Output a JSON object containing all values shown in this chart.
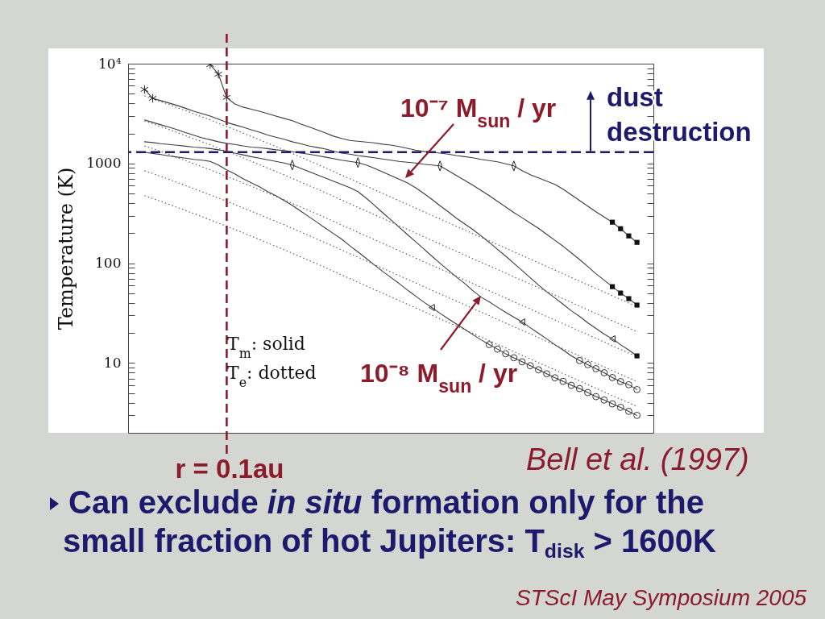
{
  "chart_data": {
    "type": "line",
    "ylabel": "Temperature (K)",
    "categories": [
      null,
      null,
      null,
      null,
      null,
      null,
      null,
      null,
      null,
      null,
      null,
      null,
      null,
      null,
      null,
      null,
      null,
      null,
      null,
      null,
      null,
      null,
      null,
      null,
      null,
      null,
      null,
      null,
      null,
      null,
      null,
      null,
      null,
      null,
      null,
      null,
      null,
      null,
      null,
      null,
      null,
      null,
      null,
      null,
      null,
      null,
      null,
      null,
      null,
      null,
      null,
      null,
      null,
      null,
      null,
      null,
      null,
      null,
      null,
      null,
      null
    ],
    "series": [
      {
        "line_style": "solid",
        "color": "#3c3c3c",
        "values": [
          null,
          null,
          null,
          null,
          null,
          null,
          null,
          null,
          9800,
          7860,
          4590,
          3950,
          3670,
          3500,
          3340,
          3160,
          2990,
          2830,
          2680,
          2490,
          2330,
          2180,
          2030,
          1880,
          1780,
          1700,
          1670,
          1640,
          1610,
          1560,
          1530,
          1480,
          1420,
          1360,
          1320,
          1300,
          1270,
          1240,
          1200,
          1170,
          1140,
          1100,
          1070,
          1040,
          991,
          946,
          846,
          771,
          716,
          665,
          617,
          552,
          485,
          426,
          374,
          328,
          291,
          258,
          222,
          188,
          162
        ]
      },
      {
        "line_style": "solid",
        "color": "#3c3c3c",
        "values": [
          5520,
          4500,
          4260,
          4030,
          3810,
          3570,
          3340,
          3160,
          2990,
          2780,
          2580,
          2440,
          2310,
          2180,
          2060,
          1930,
          1830,
          1750,
          1650,
          1580,
          1500,
          1450,
          1400,
          1330,
          1270,
          1240,
          1200,
          1170,
          1140,
          1110,
          1080,
          1050,
          1030,
          1010,
          982,
          964,
          946,
          846,
          757,
          677,
          606,
          537,
          476,
          418,
          367,
          322,
          286,
          253,
          224,
          195,
          170,
          148,
          127,
          109,
          92.8,
          78.6,
          67.7,
          58.3,
          50.3,
          44.2,
          38.1
        ]
      },
      {
        "line_style": "solid",
        "color": "#3c3c3c",
        "values": [
          2730,
          2580,
          2440,
          2310,
          2180,
          2040,
          1920,
          1810,
          1730,
          1650,
          1590,
          1550,
          1500,
          1460,
          1440,
          1410,
          1370,
          1350,
          1310,
          1270,
          1240,
          1200,
          1160,
          1120,
          1080,
          1050,
          1020,
          964,
          895,
          823,
          757,
          696,
          641,
          573,
          503,
          438,
          377,
          328,
          283,
          248,
          218,
          188,
          162,
          138,
          118,
          100,
          84.6,
          71.6,
          60.6,
          51.7,
          45.0,
          38.8,
          33.4,
          29.4,
          25.3,
          22.2,
          19.5,
          17.5,
          15.3,
          13.5,
          11.8
        ]
      },
      {
        "line_style": "solid",
        "color": "#3c3c3c",
        "values": [
          1650,
          1620,
          1580,
          1550,
          1520,
          1490,
          1460,
          1440,
          1410,
          1370,
          1330,
          1270,
          1220,
          1170,
          1130,
          1090,
          1050,
          1010,
          964,
          895,
          831,
          771,
          716,
          665,
          617,
          573,
          522,
          450,
          381,
          322,
          273,
          231,
          195,
          165,
          140,
          118,
          100,
          85.4,
          72.9,
          62.9,
          53.2,
          45.8,
          41.0,
          36.3,
          32.2,
          28.8,
          25.8,
          22.6,
          19.9,
          17.5,
          15.3,
          13.5,
          11.8,
          10.6,
          9.64,
          8.78,
          8,
          7.16,
          6.52,
          6.06,
          5.42
        ]
      },
      {
        "line_style": "solid",
        "color": "#3c3c3c",
        "values": [
          1300,
          1260,
          1230,
          1190,
          1160,
          1130,
          1100,
          1080,
          1050,
          964,
          862,
          786,
          703,
          641,
          584,
          522,
          476,
          426,
          381,
          334,
          294,
          258,
          226,
          199,
          175,
          150,
          130,
          112,
          96.4,
          83.1,
          72.3,
          62.9,
          54.2,
          47.1,
          41.0,
          36.0,
          31.6,
          27.8,
          24.6,
          21.8,
          19.3,
          17.1,
          15.3,
          13.8,
          12.4,
          11.3,
          10.3,
          9.41,
          8.57,
          7.81,
          7.12,
          6.56,
          5.98,
          5.55,
          5.06,
          4.61,
          4.26,
          3.9,
          3.6,
          3.28,
          2.99
        ]
      },
      {
        "line_style": "dotted",
        "color": "#555555",
        "values": [
          4750,
          4450,
          4160,
          3890,
          3620,
          3380,
          3150,
          2930,
          2730,
          2530,
          2350,
          2180,
          2020,
          1870,
          1730,
          1600,
          1480,
          1370,
          1260,
          1160,
          1070,
          987,
          908,
          834,
          765,
          704,
          646,
          595,
          546,
          502,
          461,
          424,
          390,
          358,
          329,
          302,
          278,
          255,
          235,
          216,
          198,
          182,
          168,
          154,
          142,
          130,
          120,
          110,
          101,
          92.8,
          85.4,
          78.4,
          72.1,
          66.2,
          60.9,
          55.9,
          51.4,
          47.2,
          43.4,
          40.0,
          36.7
        ]
      },
      {
        "line_style": "dotted",
        "color": "#555555",
        "values": [
          2670,
          2500,
          2340,
          2190,
          2040,
          1900,
          1770,
          1650,
          1540,
          1420,
          1320,
          1230,
          1140,
          1050,
          973,
          900,
          832,
          770,
          709,
          652,
          602,
          555,
          511,
          469,
          430,
          396,
          363,
          335,
          307,
          282,
          259,
          238,
          219,
          201,
          185,
          170,
          156,
          143,
          132,
          121,
          111,
          102,
          94.5,
          86.6,
          79.8,
          73.1,
          67.5,
          61.9,
          56.8,
          52.2,
          48.0,
          44.1,
          40.5,
          37.2,
          34.2,
          31.4,
          28.9,
          26.5,
          24.4,
          22.5,
          20.6
        ]
      },
      {
        "line_style": "dotted",
        "color": "#555555",
        "values": [
          1500,
          1410,
          1320,
          1230,
          1140,
          1070,
          996,
          926,
          863,
          800,
          743,
          689,
          639,
          591,
          547,
          506,
          468,
          433,
          398,
          367,
          338,
          312,
          287,
          264,
          242,
          223,
          204,
          188,
          173,
          159,
          146,
          134,
          123,
          113,
          104,
          95.5,
          87.9,
          80.6,
          74.3,
          68.3,
          62.6,
          57.5,
          53.1,
          48.7,
          44.9,
          41.1,
          37.9,
          34.8,
          31.9,
          29.3,
          27.0,
          24.8,
          22.8,
          20.9,
          19.3,
          17.7,
          16.3,
          14.9,
          13.7,
          12.6,
          11.6
        ]
      },
      {
        "line_style": "dotted",
        "color": "#555555",
        "values": [
          845,
          791,
          740,
          692,
          644,
          601,
          560,
          521,
          485,
          450,
          418,
          388,
          359,
          332,
          308,
          284,
          263,
          244,
          224,
          206,
          190,
          175,
          161,
          148,
          136,
          125,
          115,
          106,
          97.1,
          89.3,
          82.0,
          75.4,
          69.3,
          63.7,
          58.5,
          53.7,
          49.4,
          45.3,
          41.8,
          38.4,
          35.2,
          32.4,
          29.9,
          27.4,
          25.2,
          23.1,
          21.3,
          19.6,
          18.0,
          16.5,
          15.2,
          13.9,
          12.8,
          11.8,
          10.8,
          9.94,
          9.14,
          8.39,
          7.72,
          7.11,
          6.53
        ]
      },
      {
        "line_style": "dotted",
        "color": "#555555",
        "values": [
          475,
          445,
          416,
          389,
          362,
          338,
          315,
          293,
          273,
          253,
          235,
          218,
          202,
          187,
          173,
          160,
          148,
          137,
          126,
          116,
          107,
          98.7,
          90.8,
          83.4,
          76.5,
          70.4,
          64.6,
          59.5,
          54.6,
          50.2,
          46.1,
          42.4,
          39.0,
          35.8,
          32.9,
          30.2,
          27.8,
          25.5,
          23.5,
          21.6,
          19.8,
          18.2,
          16.8,
          15.4,
          14.2,
          13.0,
          12.0,
          11.0,
          10.1,
          9.28,
          8.54,
          7.84,
          7.21,
          6.62,
          6.09,
          5.59,
          5.14,
          4.72,
          4.34,
          4.0,
          3.67
        ]
      },
      {
        "type": "scatter",
        "marker": "cross",
        "color": "#222222",
        "values": [
          5520,
          4500,
          null,
          null,
          null,
          null,
          null,
          null,
          9800,
          7860,
          4590,
          null,
          null,
          null,
          null,
          null,
          null,
          null,
          null,
          null,
          null,
          null,
          null,
          null,
          null,
          null,
          null,
          null,
          null,
          null,
          null,
          null,
          null,
          null,
          null,
          null,
          null,
          null,
          null,
          null,
          null,
          null,
          null,
          null,
          null,
          null,
          null,
          null,
          null,
          null,
          null,
          null,
          null,
          null,
          null,
          null,
          null,
          null,
          null,
          null,
          null
        ]
      },
      {
        "type": "scatter",
        "marker": "diamond",
        "color": "#222222",
        "values": [
          null,
          null,
          null,
          null,
          null,
          null,
          null,
          null,
          null,
          null,
          null,
          null,
          null,
          null,
          null,
          null,
          null,
          null,
          964,
          null,
          null,
          null,
          null,
          null,
          null,
          null,
          1020,
          null,
          null,
          null,
          null,
          null,
          null,
          null,
          null,
          null,
          946,
          null,
          null,
          null,
          null,
          null,
          null,
          null,
          null,
          946,
          null,
          null,
          null,
          null,
          null,
          null,
          null,
          null,
          null,
          null,
          null,
          null,
          null,
          null,
          null
        ]
      },
      {
        "type": "scatter",
        "marker": "triangle",
        "color": "#222222",
        "values": [
          null,
          null,
          null,
          null,
          null,
          null,
          null,
          null,
          null,
          null,
          null,
          null,
          null,
          null,
          null,
          null,
          null,
          null,
          null,
          null,
          null,
          null,
          null,
          null,
          null,
          null,
          null,
          null,
          null,
          null,
          null,
          null,
          null,
          null,
          null,
          36.0,
          null,
          null,
          null,
          null,
          null,
          null,
          null,
          null,
          null,
          null,
          25.8,
          null,
          null,
          null,
          null,
          null,
          null,
          null,
          null,
          null,
          null,
          17.5,
          null,
          null,
          null
        ]
      },
      {
        "type": "scatter",
        "marker": "square",
        "color": "#111111",
        "values": [
          null,
          null,
          null,
          null,
          null,
          null,
          null,
          null,
          null,
          null,
          null,
          null,
          null,
          null,
          null,
          null,
          null,
          null,
          null,
          null,
          null,
          null,
          null,
          null,
          null,
          null,
          null,
          null,
          null,
          null,
          null,
          null,
          null,
          null,
          null,
          null,
          null,
          null,
          null,
          null,
          null,
          null,
          null,
          null,
          null,
          null,
          null,
          null,
          null,
          null,
          null,
          null,
          null,
          null,
          null,
          null,
          null,
          258,
          222,
          188,
          162
        ]
      },
      {
        "type": "scatter",
        "marker": "square",
        "color": "#111111",
        "values": [
          null,
          null,
          null,
          null,
          null,
          null,
          null,
          null,
          null,
          null,
          null,
          null,
          null,
          null,
          null,
          null,
          null,
          null,
          null,
          null,
          null,
          null,
          null,
          null,
          null,
          null,
          null,
          null,
          null,
          null,
          null,
          null,
          null,
          null,
          null,
          null,
          null,
          null,
          null,
          null,
          null,
          null,
          null,
          null,
          null,
          null,
          null,
          null,
          null,
          null,
          null,
          null,
          null,
          null,
          null,
          null,
          null,
          58.3,
          50.3,
          44.2,
          38.1
        ]
      },
      {
        "type": "scatter",
        "marker": "square",
        "color": "#111111",
        "values": [
          null,
          null,
          null,
          null,
          null,
          null,
          null,
          null,
          null,
          null,
          null,
          null,
          null,
          null,
          null,
          null,
          null,
          null,
          null,
          null,
          null,
          null,
          null,
          null,
          null,
          null,
          null,
          null,
          null,
          null,
          null,
          null,
          null,
          null,
          null,
          null,
          null,
          null,
          null,
          null,
          null,
          null,
          null,
          null,
          null,
          null,
          null,
          null,
          null,
          null,
          null,
          null,
          null,
          null,
          null,
          null,
          null,
          null,
          null,
          null,
          11.8
        ]
      },
      {
        "type": "scatter",
        "marker": "circle",
        "color": "#333333",
        "values": [
          null,
          null,
          null,
          null,
          null,
          null,
          null,
          null,
          null,
          null,
          null,
          null,
          null,
          null,
          null,
          null,
          null,
          null,
          null,
          null,
          null,
          null,
          null,
          null,
          null,
          null,
          null,
          null,
          null,
          null,
          null,
          null,
          null,
          null,
          null,
          null,
          null,
          null,
          null,
          null,
          null,
          null,
          null,
          null,
          null,
          null,
          null,
          null,
          null,
          null,
          null,
          null,
          null,
          10.6,
          9.64,
          8.78,
          8,
          7.16,
          6.52,
          6.06,
          5.42
        ]
      },
      {
        "type": "scatter",
        "marker": "circle",
        "color": "#333333",
        "values": [
          null,
          null,
          null,
          null,
          null,
          null,
          null,
          null,
          null,
          null,
          null,
          null,
          null,
          null,
          null,
          null,
          null,
          null,
          null,
          null,
          null,
          null,
          null,
          null,
          null,
          null,
          null,
          null,
          null,
          null,
          null,
          null,
          null,
          null,
          null,
          null,
          null,
          null,
          null,
          null,
          null,
          null,
          15.3,
          13.8,
          12.4,
          11.3,
          10.3,
          9.41,
          8.57,
          7.81,
          7.12,
          6.56,
          5.98,
          5.55,
          5.06,
          4.61,
          4.26,
          3.9,
          3.6,
          3.28,
          2.99
        ]
      }
    ],
    "ylim": [
      2,
      10000
    ],
    "yticks": [
      {
        "value": 3,
        "label": null
      },
      {
        "value": 4,
        "label": null
      },
      {
        "value": 5,
        "label": null
      },
      {
        "value": 6,
        "label": null
      },
      {
        "value": 7,
        "label": null
      },
      {
        "value": 8,
        "label": null
      },
      {
        "value": 9,
        "label": null
      },
      10,
      {
        "value": 20,
        "label": null
      },
      {
        "value": 30,
        "label": null
      },
      {
        "value": 40,
        "label": null
      },
      {
        "value": 50,
        "label": null
      },
      {
        "value": 60,
        "label": null
      },
      {
        "value": 70,
        "label": null
      },
      {
        "value": 80,
        "label": null
      },
      {
        "value": 90,
        "label": null
      },
      100,
      {
        "value": 200,
        "label": null
      },
      {
        "value": 300,
        "label": null
      },
      {
        "value": 400,
        "label": null
      },
      {
        "value": 500,
        "label": null
      },
      {
        "value": 600,
        "label": null
      },
      {
        "value": 700,
        "label": null
      },
      {
        "value": 800,
        "label": null
      },
      {
        "value": 900,
        "label": null
      },
      1000,
      {
        "value": 2000,
        "label": null
      },
      {
        "value": 3000,
        "label": null
      },
      {
        "value": 4000,
        "label": null
      },
      {
        "value": 5000,
        "label": null
      },
      {
        "value": 6000,
        "label": null
      },
      {
        "value": 7000,
        "label": null
      },
      {
        "value": 8000,
        "label": null
      },
      {
        "value": 9000,
        "label": null
      },
      {
        "value": 10000,
        "label": "10⁴"
      }
    ],
    "log": "y",
    "ref_lines": [
      {
        "axis": "y",
        "value": 1300,
        "label": "dust destruction",
        "color": "#1c1a6c",
        "line_style": "dashed"
      }
    ],
    "annotations": [
      "10⁻⁷ M$_{sun}$ / yr",
      "10⁻⁸ M$_{sun}$ / yr",
      "T$_{m}$: solid",
      "T$_{e}$: dotted",
      "Bell et al. (1997)",
      "r = 0.1au",
      "Can exclude",
      "in situ",
      "formation only for the",
      "small fraction of hot Jupiters: T$_{disk}$ > 1600K",
      "STScI May Symposium 2005"
    ]
  }
}
